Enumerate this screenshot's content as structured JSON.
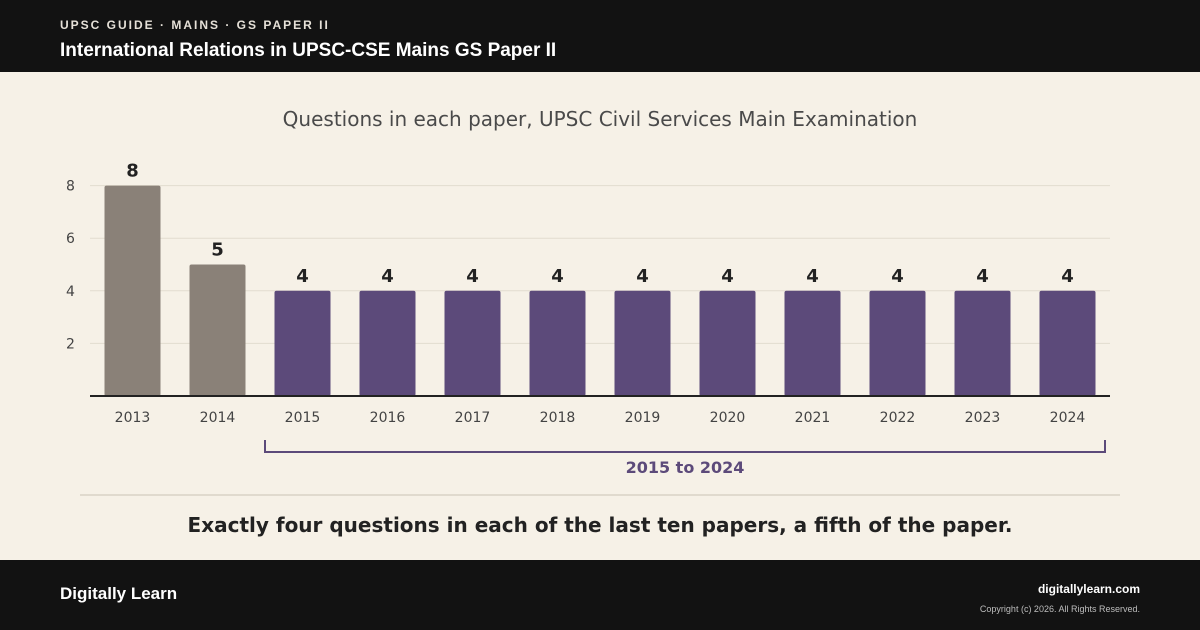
{
  "header": {
    "eyebrow": "UPSC GUIDE · MAINS · GS PAPER II",
    "title": "International Relations in UPSC-CSE Mains GS Paper II"
  },
  "chart_data": {
    "type": "bar",
    "title": "Questions in each paper, UPSC Civil Services Main Examination",
    "categories": [
      "2013",
      "2014",
      "2015",
      "2016",
      "2017",
      "2018",
      "2019",
      "2020",
      "2021",
      "2022",
      "2023",
      "2024"
    ],
    "values": [
      8,
      5,
      4,
      4,
      4,
      4,
      4,
      4,
      4,
      4,
      4,
      4
    ],
    "yticks": [
      "2",
      "4",
      "6",
      "8"
    ],
    "ylim": [
      0,
      8
    ],
    "grid": true,
    "bar_colors": [
      "#8a8178",
      "#8a8178",
      "#5c4a7a",
      "#5c4a7a",
      "#5c4a7a",
      "#5c4a7a",
      "#5c4a7a",
      "#5c4a7a",
      "#5c4a7a",
      "#5c4a7a",
      "#5c4a7a",
      "#5c4a7a"
    ],
    "annotation": {
      "label": "2015 to 2024",
      "from": "2015",
      "to": "2024",
      "color": "#5c4a7a"
    }
  },
  "caption": "Exactly four questions in each of the last ten papers, a fifth of the paper.",
  "footer": {
    "brand": "Digitally Learn",
    "site": "digitallylearn.com",
    "copyright": "Copyright (c) 2026. All Rights Reserved."
  }
}
